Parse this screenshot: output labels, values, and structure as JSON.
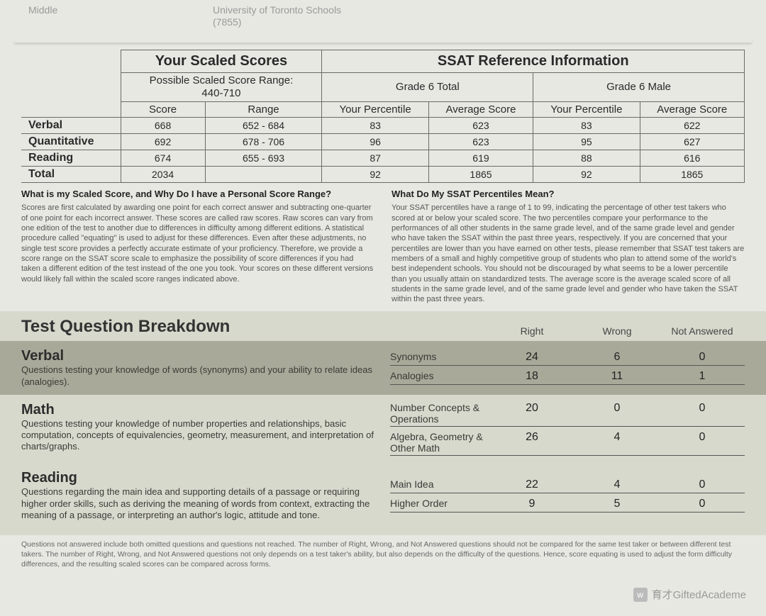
{
  "header": {
    "level": "Middle",
    "school": "University of Toronto Schools",
    "school_code": "(7855)"
  },
  "score_table": {
    "group_headers": {
      "scaled": "Your Scaled Scores",
      "reference": "SSAT Reference Information"
    },
    "sub_headers": {
      "range_label": "Possible Scaled Score Range:",
      "range_value": "440-710",
      "ref_group_a": "Grade 6 Total",
      "ref_group_b": "Grade 6 Male"
    },
    "col_headers": {
      "score": "Score",
      "range": "Range",
      "your_pct": "Your Percentile",
      "avg_score": "Average Score"
    },
    "rows": [
      {
        "label": "Verbal",
        "score": "668",
        "range": "652 - 684",
        "a_pct": "83",
        "a_avg": "623",
        "b_pct": "83",
        "b_avg": "622"
      },
      {
        "label": "Quantitative",
        "score": "692",
        "range": "678 - 706",
        "a_pct": "96",
        "a_avg": "623",
        "b_pct": "95",
        "b_avg": "627"
      },
      {
        "label": "Reading",
        "score": "674",
        "range": "655 - 693",
        "a_pct": "87",
        "a_avg": "619",
        "b_pct": "88",
        "b_avg": "616"
      },
      {
        "label": "Total",
        "score": "2034",
        "range": "",
        "a_pct": "92",
        "a_avg": "1865",
        "b_pct": "92",
        "b_avg": "1865"
      }
    ]
  },
  "explanations": {
    "left_title": "What is my Scaled Score, and Why Do I have a Personal Score Range?",
    "left_body": "Scores are first calculated by awarding one point for each correct answer and subtracting one-quarter of one point for each incorrect answer.  These scores are called raw scores. Raw scores can vary from one edition of the test to another due to differences in difficulty among different editions. A statistical procedure called \"equating\" is used to adjust for these differences. Even after these adjustments, no single test score provides a perfectly accurate estimate of your proficiency. Therefore, we provide a score range on the SSAT score scale to emphasize the  possibility of score differences if you had taken a different edition of the test instead of the one you took. Your scores on these different versions would likely fall within the scaled score ranges  indicated above.",
    "right_title": "What Do My SSAT Percentiles Mean?",
    "right_body": "Your SSAT percentiles have a range of 1 to 99, indicating the percentage of other test takers who scored at or below your scaled score. The two percentiles compare your performance to the performances of all other students in the same grade level, and of the same grade level and gender who have taken the SSAT within the past three years, respectively. If you are concerned that your percentiles are lower than you have earned on other tests, please remember that SSAT test takers are members of a small and highly competitive group of students who plan to attend some of the world's best independent schools. You should not be discouraged by what seems to be a lower percentile than you usually attain on standardized tests. The average score is the average scaled score of all students in the same grade level, and of the same grade level and gender who have taken the SSAT within the past three years."
  },
  "breakdown": {
    "title": "Test Question Breakdown",
    "cols": {
      "right": "Right",
      "wrong": "Wrong",
      "na": "Not Answered"
    },
    "sections": [
      {
        "name": "Verbal",
        "desc": "Questions testing your knowledge of words (synonyms) and your ability to relate ideas (analogies).",
        "alt": true,
        "rows": [
          {
            "label": "Synonyms",
            "r": "24",
            "w": "6",
            "na": "0"
          },
          {
            "label": "Analogies",
            "r": "18",
            "w": "11",
            "na": "1"
          }
        ]
      },
      {
        "name": "Math",
        "desc": "Questions testing your knowledge of number properties and relationships, basic computation, concepts of equivalencies, geometry, measurement, and interpretation of charts/graphs.",
        "alt": false,
        "rows": [
          {
            "label": "Number Concepts & Operations",
            "r": "20",
            "w": "0",
            "na": "0"
          },
          {
            "label": "Algebra, Geometry & Other Math",
            "r": "26",
            "w": "4",
            "na": "0"
          }
        ]
      },
      {
        "name": "Reading",
        "desc": "Questions regarding the main idea and supporting details of a passage or requiring higher order skills, such as deriving the meaning of words from context, extracting the meaning of a passage, or interpreting an author's logic, attitude and tone.",
        "alt": false,
        "rows": [
          {
            "label": "Main Idea",
            "r": "22",
            "w": "4",
            "na": "0"
          },
          {
            "label": "Higher Order",
            "r": "9",
            "w": "5",
            "na": "0"
          }
        ]
      }
    ]
  },
  "footnote": "Questions not answered include both omitted questions and questions not reached. The number of Right, Wrong, and Not Answered questions should not be compared for the same test taker or between different test takers. The number of Right, Wrong, and Not Answered questions not only depends on a test taker's ability, but also depends on the difficulty of the questions. Hence, score equating is used to adjust the form difficulty differences, and the resulting scaled scores can be compared across forms.",
  "watermark": "育才GiftedAcademe",
  "colors": {
    "page_bg": "#e8e8e3",
    "breakdown_bg": "#d8d9cd",
    "alt_section_bg": "#a9a99a",
    "border": "#6a6a66",
    "muted_text": "#999999"
  }
}
